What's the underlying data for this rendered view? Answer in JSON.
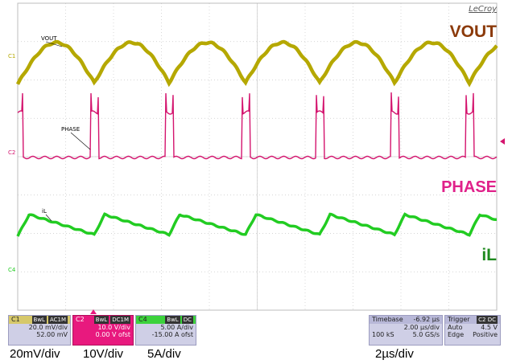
{
  "brand": "LeCroy",
  "traces": {
    "c1": {
      "label": "VOUT",
      "marker": "C1",
      "big": "VOUT",
      "color": "#b5a800",
      "big_color": "#8b3a0a"
    },
    "c2": {
      "label": "PHASE",
      "marker": "C2",
      "big": "PHASE",
      "color": "#d4146e",
      "big_color": "#e0218a"
    },
    "c4": {
      "label": "iL",
      "marker": "C4",
      "big": "iL",
      "color": "#22cc22",
      "big_color": "#1e8a1e"
    }
  },
  "panels": {
    "c1": {
      "name": "C1",
      "chip1": "BwL",
      "chip2": "AC1M",
      "row1": "20.0 mV/div",
      "row2": "52.00 mV"
    },
    "c2": {
      "name": "C2",
      "chip1": "BwL",
      "chip2": "DC1M",
      "row1": "10.0 V/div",
      "row2": "0.00 V ofst"
    },
    "c4": {
      "name": "C4",
      "chip1": "BwL",
      "chip2": "DC",
      "row1": "5.00 A/div",
      "row2": "-15.00 A ofst"
    }
  },
  "timebase": {
    "label": "Timebase",
    "delay": "-6.92 µs",
    "row1": "2.00 µs/div",
    "samples": "100 kS",
    "rate": "5.0 GS/s"
  },
  "trigger": {
    "label": "Trigger",
    "chip": "C2 DC",
    "mode": "Auto",
    "level": "4.5 V",
    "type": "Edge",
    "slope": "Positive"
  },
  "captions": {
    "c1": "20mV/div",
    "c2": "10V/div",
    "c4": "5A/div",
    "time": "2µs/div"
  }
}
